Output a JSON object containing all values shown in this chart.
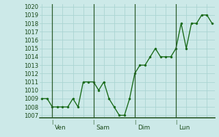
{
  "y_values": [
    1009,
    1009,
    1008,
    1008,
    1008,
    1008,
    1009,
    1008,
    1011,
    1011,
    1011,
    1010,
    1011,
    1009,
    1008,
    1007,
    1007,
    1009,
    1012,
    1013,
    1013,
    1014,
    1015,
    1014,
    1014,
    1014,
    1015,
    1018,
    1015,
    1018,
    1018,
    1019,
    1019,
    1018
  ],
  "day_labels": [
    "Ven",
    "Sam",
    "Dim",
    "Lun"
  ],
  "day_positions": [
    2,
    10,
    18,
    26
  ],
  "ylim_min": 1007,
  "ylim_max": 1020,
  "bg_color": "#cce9e8",
  "grid_color": "#aad4d2",
  "line_color": "#1a6b1a",
  "marker_color": "#1a6b1a",
  "axis_color": "#2a5a2a",
  "tick_label_color": "#1a4a1a",
  "n_points": 34
}
